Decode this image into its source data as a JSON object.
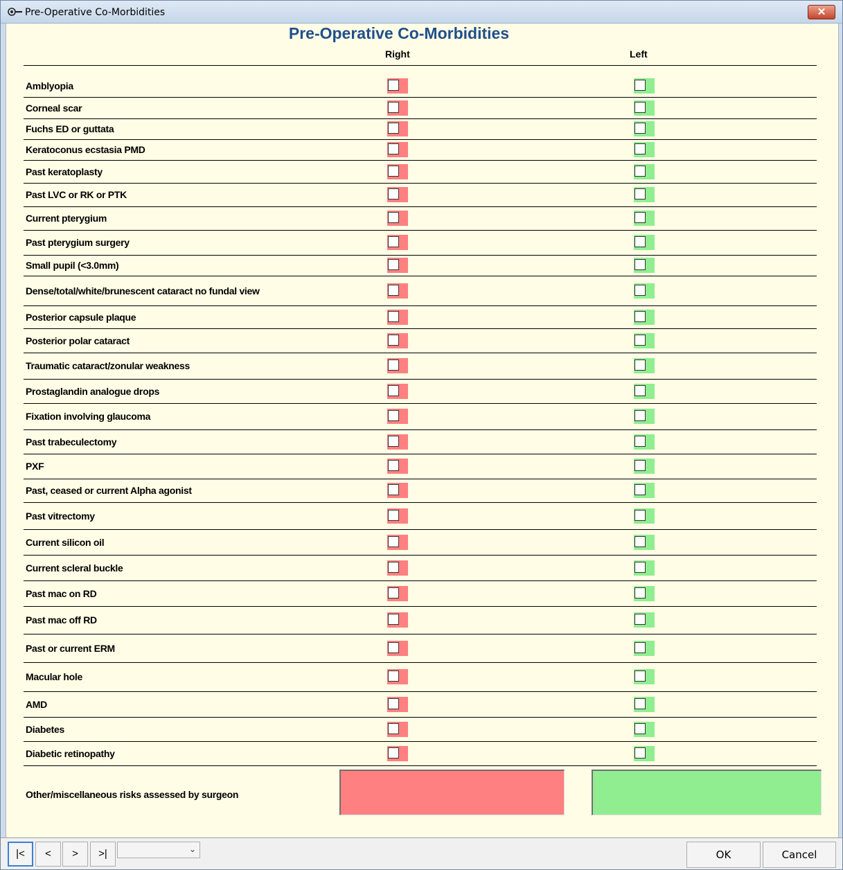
{
  "window": {
    "title": "Pre-Operative Co-Morbidities",
    "close_label": "✕"
  },
  "form": {
    "heading": "Pre-Operative Co-Morbidities",
    "col_right": "Right",
    "col_left": "Left",
    "rows": [
      {
        "label": "Amblyopia",
        "right": false,
        "left": false
      },
      {
        "label": "Corneal scar",
        "right": false,
        "left": false
      },
      {
        "label": "Fuchs ED or guttata",
        "right": false,
        "left": false
      },
      {
        "label": "Keratoconus ecstasia PMD",
        "right": false,
        "left": false
      },
      {
        "label": "Past keratoplasty",
        "right": false,
        "left": false
      },
      {
        "label": "Past LVC or RK or PTK",
        "right": false,
        "left": false
      },
      {
        "label": "Current pterygium",
        "right": false,
        "left": false
      },
      {
        "label": "Past pterygium surgery",
        "right": false,
        "left": false
      },
      {
        "label": "Small pupil (<3.0mm)",
        "right": false,
        "left": false
      },
      {
        "label": "Dense/total/white/brunescent cataract no fundal view",
        "right": false,
        "left": false
      },
      {
        "label": "Posterior capsule plaque",
        "right": false,
        "left": false
      },
      {
        "label": "Posterior polar cataract",
        "right": false,
        "left": false
      },
      {
        "label": "Traumatic cataract/zonular weakness",
        "right": false,
        "left": false
      },
      {
        "label": "Prostaglandin analogue drops",
        "right": false,
        "left": false
      },
      {
        "label": "Fixation involving glaucoma",
        "right": false,
        "left": false
      },
      {
        "label": "Past trabeculectomy",
        "right": false,
        "left": false
      },
      {
        "label": "PXF",
        "right": false,
        "left": false
      },
      {
        "label": "Past, ceased or current Alpha agonist",
        "right": false,
        "left": false
      },
      {
        "label": "Past vitrectomy",
        "right": false,
        "left": false
      },
      {
        "label": "Current silicon oil",
        "right": false,
        "left": false
      },
      {
        "label": "Current scleral buckle",
        "right": false,
        "left": false
      },
      {
        "label": "Past mac on RD",
        "right": false,
        "left": false
      },
      {
        "label": "Past mac off RD",
        "right": false,
        "left": false
      },
      {
        "label": "Past or current ERM",
        "right": false,
        "left": false
      },
      {
        "label": "Macular hole",
        "right": false,
        "left": false
      },
      {
        "label": "AMD",
        "right": false,
        "left": false
      },
      {
        "label": "Diabetes",
        "right": false,
        "left": false
      },
      {
        "label": "Diabetic retinopathy",
        "right": false,
        "left": false
      }
    ],
    "misc_label": "Other/miscellaneous risks assessed by surgeon",
    "misc_right_value": "",
    "misc_left_value": ""
  },
  "nav": {
    "first": "|<",
    "prev": "<",
    "next": ">",
    "last": ">|",
    "record_select_value": "",
    "ok": "OK",
    "cancel": "Cancel"
  },
  "colors": {
    "right": "#ff8080",
    "left": "#90ee90",
    "heading": "#1f4f8c",
    "background": "#fffde6"
  }
}
